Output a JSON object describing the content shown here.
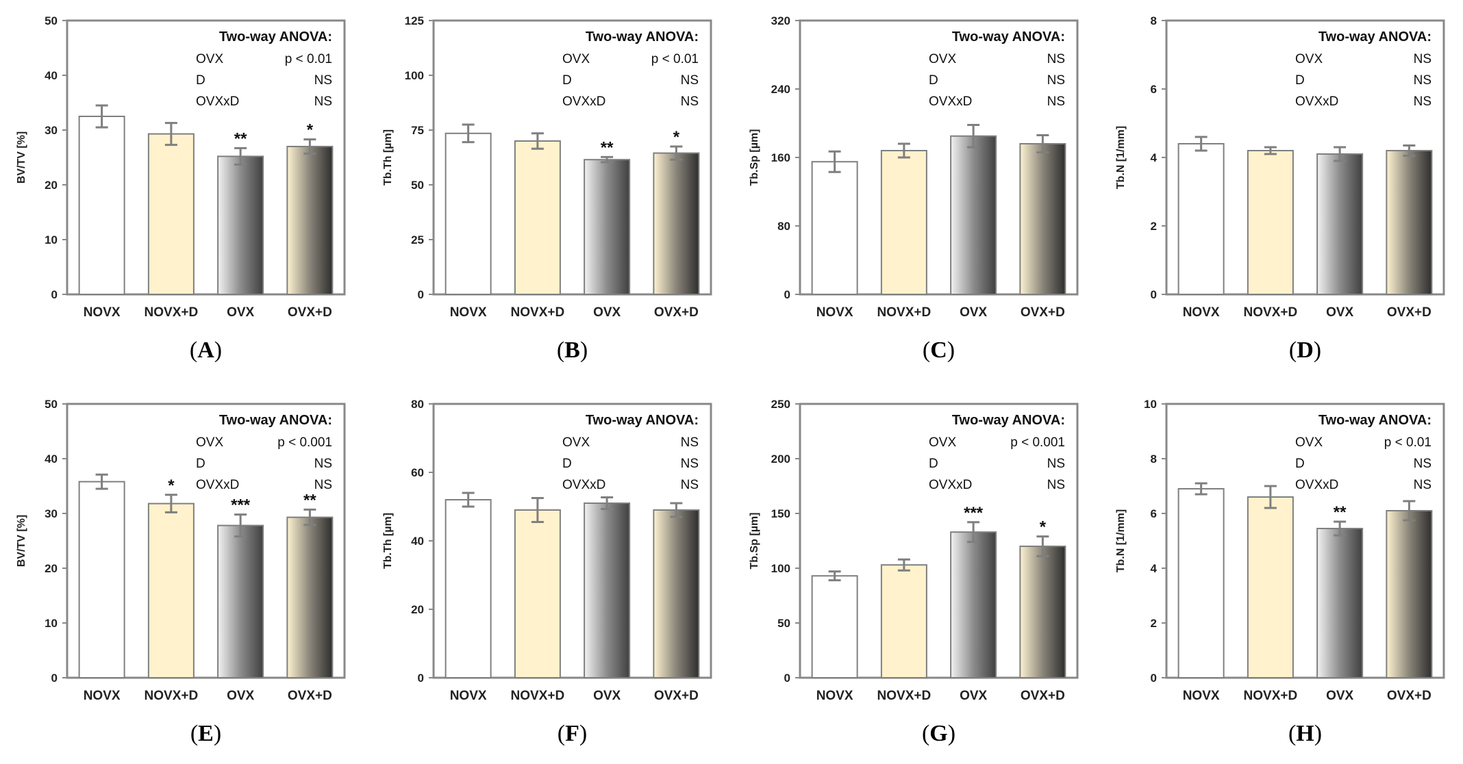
{
  "colors": {
    "axis": "#888888",
    "bar_stroke": "#7f7f7f",
    "error_bar": "#7f7f7f",
    "novx_fill": "#ffffff",
    "novxd_fill": "#fff2cc",
    "ovx_gradient": [
      "#f2f2f2",
      "#8c8c8c",
      "#404040"
    ],
    "ovxd_gradient": [
      "#fdf2d0",
      "#8a857a",
      "#2e2e2e"
    ]
  },
  "chart_data": [
    {
      "panel_label": "A",
      "type": "bar",
      "ylabel": "BV/TV [%]",
      "ylim": [
        0,
        50
      ],
      "yticks": [
        "0",
        "10",
        "20",
        "30",
        "40",
        "50"
      ],
      "categories": [
        "NOVX",
        "NOVX+D",
        "OVX",
        "OVX+D"
      ],
      "values": [
        32.5,
        29.3,
        25.2,
        27.0
      ],
      "errors": [
        2.0,
        2.0,
        1.5,
        1.3
      ],
      "significance": [
        "",
        "",
        "**",
        "*"
      ],
      "anova": {
        "title": "Two-way ANOVA:",
        "rows": [
          [
            "OVX",
            "p < 0.01"
          ],
          [
            "D",
            "NS"
          ],
          [
            "OVXxD",
            "NS"
          ]
        ]
      }
    },
    {
      "panel_label": "B",
      "type": "bar",
      "ylabel": "Tb.Th [µm]",
      "ylim": [
        0,
        125
      ],
      "yticks": [
        "0",
        "25",
        "50",
        "75",
        "100",
        "125"
      ],
      "categories": [
        "NOVX",
        "NOVX+D",
        "OVX",
        "OVX+D"
      ],
      "values": [
        73.5,
        70.0,
        61.5,
        64.5
      ],
      "errors": [
        4.0,
        3.5,
        1.2,
        3.0
      ],
      "significance": [
        "",
        "",
        "**",
        "*"
      ],
      "anova": {
        "title": "Two-way ANOVA:",
        "rows": [
          [
            "OVX",
            "p < 0.01"
          ],
          [
            "D",
            "NS"
          ],
          [
            "OVXxD",
            "NS"
          ]
        ]
      }
    },
    {
      "panel_label": "C",
      "type": "bar",
      "ylabel": "Tb.Sp [µm]",
      "ylim": [
        0,
        320
      ],
      "yticks": [
        "0",
        "80",
        "160",
        "240",
        "320"
      ],
      "categories": [
        "NOVX",
        "NOVX+D",
        "OVX",
        "OVX+D"
      ],
      "values": [
        155,
        168,
        185,
        176
      ],
      "errors": [
        12,
        8,
        13,
        10
      ],
      "significance": [
        "",
        "",
        "",
        ""
      ],
      "anova": {
        "title": "Two-way ANOVA:",
        "rows": [
          [
            "OVX",
            "NS"
          ],
          [
            "D",
            "NS"
          ],
          [
            "OVXxD",
            "NS"
          ]
        ]
      }
    },
    {
      "panel_label": "D",
      "type": "bar",
      "ylabel": "Tb.N [1/mm]",
      "ylim": [
        0,
        8
      ],
      "yticks": [
        "0",
        "2",
        "4",
        "6",
        "8"
      ],
      "categories": [
        "NOVX",
        "NOVX+D",
        "OVX",
        "OVX+D"
      ],
      "values": [
        4.4,
        4.2,
        4.1,
        4.2
      ],
      "errors": [
        0.2,
        0.1,
        0.2,
        0.15
      ],
      "significance": [
        "",
        "",
        "",
        ""
      ],
      "anova": {
        "title": "Two-way ANOVA:",
        "rows": [
          [
            "OVX",
            "NS"
          ],
          [
            "D",
            "NS"
          ],
          [
            "OVXxD",
            "NS"
          ]
        ]
      }
    },
    {
      "panel_label": "E",
      "type": "bar",
      "ylabel": "BV/TV [%]",
      "ylim": [
        0,
        50
      ],
      "yticks": [
        "0",
        "10",
        "20",
        "30",
        "40",
        "50"
      ],
      "categories": [
        "NOVX",
        "NOVX+D",
        "OVX",
        "OVX+D"
      ],
      "values": [
        35.8,
        31.8,
        27.8,
        29.3
      ],
      "errors": [
        1.3,
        1.6,
        2.0,
        1.4
      ],
      "significance": [
        "",
        "*",
        "***",
        "**"
      ],
      "anova": {
        "title": "Two-way ANOVA:",
        "rows": [
          [
            "OVX",
            "p < 0.001"
          ],
          [
            "D",
            "NS"
          ],
          [
            "OVXxD",
            "NS"
          ]
        ]
      }
    },
    {
      "panel_label": "F",
      "type": "bar",
      "ylabel": "Tb.Th [µm]",
      "ylim": [
        0,
        80
      ],
      "yticks": [
        "0",
        "20",
        "40",
        "60",
        "80"
      ],
      "categories": [
        "NOVX",
        "NOVX+D",
        "OVX",
        "OVX+D"
      ],
      "values": [
        52.0,
        49.0,
        51.0,
        49.0
      ],
      "errors": [
        2.0,
        3.5,
        1.7,
        2.0
      ],
      "significance": [
        "",
        "",
        "",
        ""
      ],
      "anova": {
        "title": "Two-way ANOVA:",
        "rows": [
          [
            "OVX",
            "NS"
          ],
          [
            "D",
            "NS"
          ],
          [
            "OVXxD",
            "NS"
          ]
        ]
      }
    },
    {
      "panel_label": "G",
      "type": "bar",
      "ylabel": "Tb.Sp [µm]",
      "ylim": [
        0,
        250
      ],
      "yticks": [
        "0",
        "50",
        "100",
        "150",
        "200",
        "250"
      ],
      "categories": [
        "NOVX",
        "NOVX+D",
        "OVX",
        "OVX+D"
      ],
      "values": [
        93,
        103,
        133,
        120
      ],
      "errors": [
        4,
        5,
        9,
        9
      ],
      "significance": [
        "",
        "",
        "***",
        "*"
      ],
      "anova": {
        "title": "Two-way ANOVA:",
        "rows": [
          [
            "OVX",
            "p < 0.001"
          ],
          [
            "D",
            "NS"
          ],
          [
            "OVXxD",
            "NS"
          ]
        ]
      }
    },
    {
      "panel_label": "H",
      "type": "bar",
      "ylabel": "Tb.N [1/mm]",
      "ylim": [
        0,
        10
      ],
      "yticks": [
        "0",
        "2",
        "4",
        "6",
        "8",
        "10"
      ],
      "categories": [
        "NOVX",
        "NOVX+D",
        "OVX",
        "OVX+D"
      ],
      "values": [
        6.9,
        6.6,
        5.45,
        6.1
      ],
      "errors": [
        0.2,
        0.4,
        0.25,
        0.35
      ],
      "significance": [
        "",
        "",
        "**",
        ""
      ],
      "anova": {
        "title": "Two-way ANOVA:",
        "rows": [
          [
            "OVX",
            "p < 0.01"
          ],
          [
            "D",
            "NS"
          ],
          [
            "OVXxD",
            "NS"
          ]
        ]
      }
    }
  ]
}
